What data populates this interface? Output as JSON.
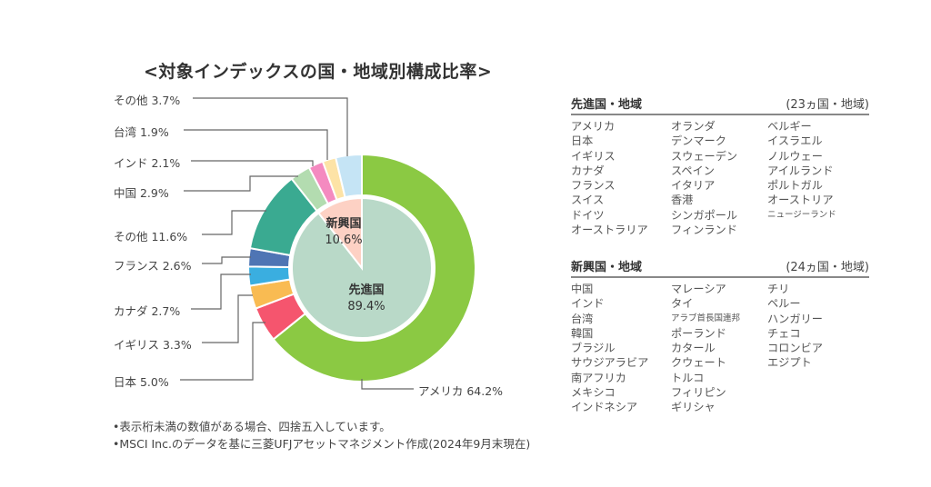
{
  "chart_data": {
    "type": "pie",
    "title": "<対象インデックスの国・地域別構成比率>",
    "inner_series": [
      {
        "name": "先進国",
        "value": 89.4,
        "label": "89.4%",
        "color": "#b9d9c8"
      },
      {
        "name": "新興国",
        "value": 10.6,
        "label": "10.6%",
        "color": "#fdd1c4"
      }
    ],
    "outer_series": [
      {
        "name": "アメリカ",
        "value": 64.2,
        "label": "アメリカ 64.2%",
        "color": "#8bc943"
      },
      {
        "name": "日本",
        "value": 5.0,
        "label": "日本 5.0%",
        "color": "#f5556e"
      },
      {
        "name": "イギリス",
        "value": 3.3,
        "label": "イギリス 3.3%",
        "color": "#f9bb52"
      },
      {
        "name": "カナダ",
        "value": 2.7,
        "label": "カナダ 2.7%",
        "color": "#3aaee0"
      },
      {
        "name": "フランス",
        "value": 2.6,
        "label": "フランス 2.6%",
        "color": "#4f75b4"
      },
      {
        "name": "その他(先進国)",
        "value": 11.6,
        "label": "その他 11.6%",
        "color": "#3aaa91"
      },
      {
        "name": "中国",
        "value": 2.9,
        "label": "中国 2.9%",
        "color": "#b3dcb0"
      },
      {
        "name": "インド",
        "value": 2.1,
        "label": "インド 2.1%",
        "color": "#f48ac0"
      },
      {
        "name": "台湾",
        "value": 1.9,
        "label": "台湾 1.9%",
        "color": "#fde3a6"
      },
      {
        "name": "その他(新興国)",
        "value": 3.7,
        "label": "その他 3.7%",
        "color": "#c5e4f5"
      }
    ]
  },
  "developed": {
    "heading": "先進国・地域",
    "count": "(23ヵ国・地域)",
    "columns": [
      [
        "アメリカ",
        "日本",
        "イギリス",
        "カナダ",
        "フランス",
        "スイス",
        "ドイツ",
        "オーストラリア"
      ],
      [
        "オランダ",
        "デンマーク",
        "スウェーデン",
        "スペイン",
        "イタリア",
        "香港",
        "シンガポール",
        "フィンランド"
      ],
      [
        "ベルギー",
        "イスラエル",
        "ノルウェー",
        "アイルランド",
        "ポルトガル",
        "オーストリア",
        "ニュージーランド"
      ]
    ]
  },
  "emerging": {
    "heading": "新興国・地域",
    "count": "(24ヵ国・地域)",
    "columns": [
      [
        "中国",
        "インド",
        "台湾",
        "韓国",
        "ブラジル",
        "サウジアラビア",
        "南アフリカ",
        "メキシコ",
        "インドネシア"
      ],
      [
        "マレーシア",
        "タイ",
        "アラブ首長国連邦",
        "ポーランド",
        "カタール",
        "クウェート",
        "トルコ",
        "フィリピン",
        "ギリシャ"
      ],
      [
        "チリ",
        "ペルー",
        "ハンガリー",
        "チェコ",
        "コロンビア",
        "エジプト"
      ]
    ]
  },
  "notes": [
    "•表示桁未満の数値がある場合、四捨五入しています。",
    "•MSCI Inc.のデータを基に三菱UFJアセットマネジメント作成(2024年9月末現在)"
  ]
}
